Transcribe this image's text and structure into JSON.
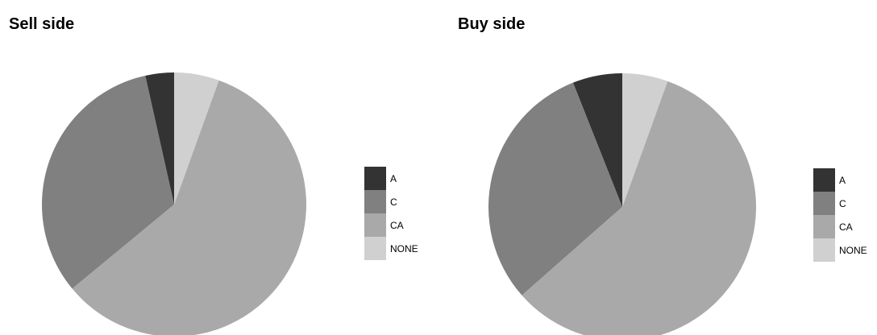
{
  "chart_data": [
    {
      "type": "pie",
      "title": "Sell side",
      "slices": [
        {
          "label": "A",
          "value": 3.5
        },
        {
          "label": "C",
          "value": 32.5
        },
        {
          "label": "CA",
          "value": 58.5
        },
        {
          "label": "NONE",
          "value": 5.5
        }
      ],
      "legend": "right",
      "colors": {
        "A": "#333333",
        "C": "#808080",
        "CA": "#a9a9a9",
        "NONE": "#d0d0d0"
      }
    },
    {
      "type": "pie",
      "title": "Buy side",
      "slices": [
        {
          "label": "A",
          "value": 6.0
        },
        {
          "label": "C",
          "value": 30.5
        },
        {
          "label": "CA",
          "value": 58.0
        },
        {
          "label": "NONE",
          "value": 5.5
        }
      ],
      "legend": "right",
      "colors": {
        "A": "#333333",
        "C": "#808080",
        "CA": "#a9a9a9",
        "NONE": "#d0d0d0"
      }
    }
  ]
}
